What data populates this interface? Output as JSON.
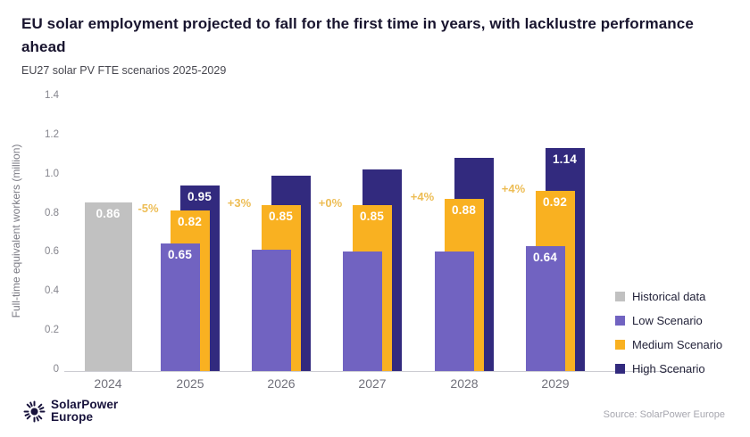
{
  "header": {
    "title": "EU solar employment projected to fall for the first time in years, with lacklustre performance ahead",
    "subtitle": "EU27 solar PV FTE scenarios 2025-2029"
  },
  "chart_data": {
    "type": "bar",
    "title": "EU solar employment projected to fall for the first time in years, with lacklustre performance ahead",
    "subtitle": "EU27 solar PV FTE scenarios 2025-2029",
    "ylabel": "Full-time equivalent workers (million)",
    "xlabel": "",
    "ylim": [
      0,
      1.4
    ],
    "yticks": [
      "1.4",
      "1.2",
      "1.0",
      "0.8",
      "0.6",
      "0.4",
      "0.2",
      "0"
    ],
    "grid": false,
    "categories": [
      "2024",
      "2025",
      "2026",
      "2027",
      "2028",
      "2029"
    ],
    "series": [
      {
        "name": "Historical data",
        "role": "historical",
        "color": "#c1c1c1",
        "values": [
          0.86,
          null,
          null,
          null,
          null,
          null
        ],
        "labels": [
          "0.86",
          null,
          null,
          null,
          null,
          null
        ]
      },
      {
        "name": "Low Scenario",
        "role": "low",
        "color": "#7163c1",
        "values": [
          null,
          0.65,
          0.62,
          0.61,
          0.61,
          0.64
        ],
        "labels": [
          null,
          "0.65",
          null,
          null,
          null,
          "0.64"
        ]
      },
      {
        "name": "Medium Scenario",
        "role": "medium",
        "color": "#f9b121",
        "values": [
          null,
          0.82,
          0.85,
          0.85,
          0.88,
          0.92
        ],
        "labels": [
          null,
          "0.82",
          "0.85",
          "0.85",
          "0.88",
          "0.92"
        ]
      },
      {
        "name": "High Scenario",
        "role": "high",
        "color": "#322a7e",
        "values": [
          null,
          0.95,
          1.0,
          1.03,
          1.09,
          1.14
        ],
        "labels": [
          null,
          "0.95",
          null,
          null,
          null,
          "1.14"
        ]
      }
    ],
    "annotations": [
      {
        "text": "-5%",
        "category": "2025"
      },
      {
        "text": "+3%",
        "category": "2026"
      },
      {
        "text": "+0%",
        "category": "2027"
      },
      {
        "text": "+4%",
        "category": "2028"
      },
      {
        "text": "+4%",
        "category": "2029"
      }
    ],
    "annotation_color": "#edbd55",
    "legend_position": "bottom-right",
    "legend": [
      {
        "label": "Historical data",
        "color": "#c1c1c1"
      },
      {
        "label": "Low Scenario",
        "color": "#7163c1"
      },
      {
        "label": "Medium Scenario",
        "color": "#f9b121"
      },
      {
        "label": "High Scenario",
        "color": "#322a7e"
      }
    ]
  },
  "footer": {
    "logo_line1": "SolarPower",
    "logo_line2": "Europe",
    "source": "Source: SolarPower Europe"
  }
}
